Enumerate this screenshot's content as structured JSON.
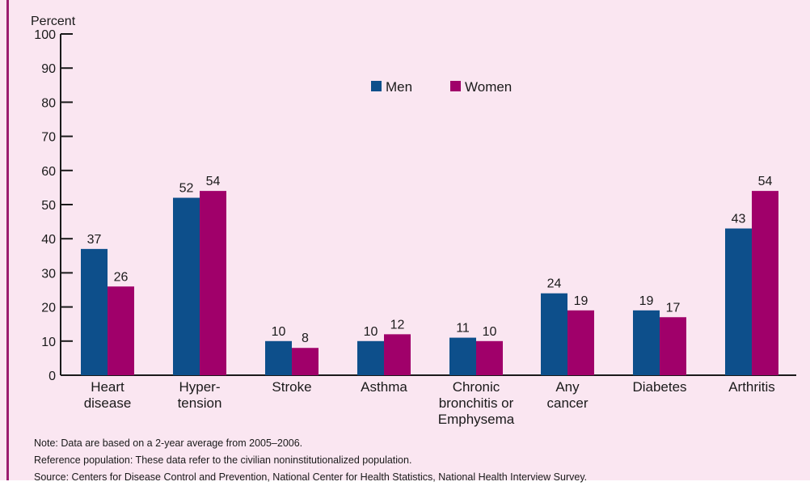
{
  "chart_data": {
    "type": "bar",
    "title": "",
    "ylabel": "Percent",
    "xlabel": "",
    "ylim": [
      0,
      100
    ],
    "yticks": [
      0,
      10,
      20,
      30,
      40,
      50,
      60,
      70,
      80,
      90,
      100
    ],
    "categories": [
      [
        "Heart",
        "disease"
      ],
      [
        "Hyper-",
        "tension"
      ],
      [
        "Stroke"
      ],
      [
        "Asthma"
      ],
      [
        "Chronic",
        "bronchitis or",
        "Emphysema"
      ],
      [
        "Any",
        "cancer"
      ],
      [
        "Diabetes"
      ],
      [
        "Arthritis"
      ]
    ],
    "series": [
      {
        "name": "Men",
        "color": "#0d4f8b",
        "values": [
          37,
          52,
          10,
          10,
          11,
          24,
          19,
          43
        ]
      },
      {
        "name": "Women",
        "color": "#a0006a",
        "values": [
          26,
          54,
          8,
          12,
          10,
          19,
          17,
          54
        ]
      }
    ],
    "legend_position": "top-center",
    "grid": false
  },
  "notes": {
    "note": "Note: Data are based on a 2-year average from 2005–2006.",
    "reference": "Reference population: These data refer to the civilian noninstitutionalized population.",
    "source": "Source: Centers for Disease Control and Prevention, National Center for Health Statistics, National Health Interview Survey."
  }
}
